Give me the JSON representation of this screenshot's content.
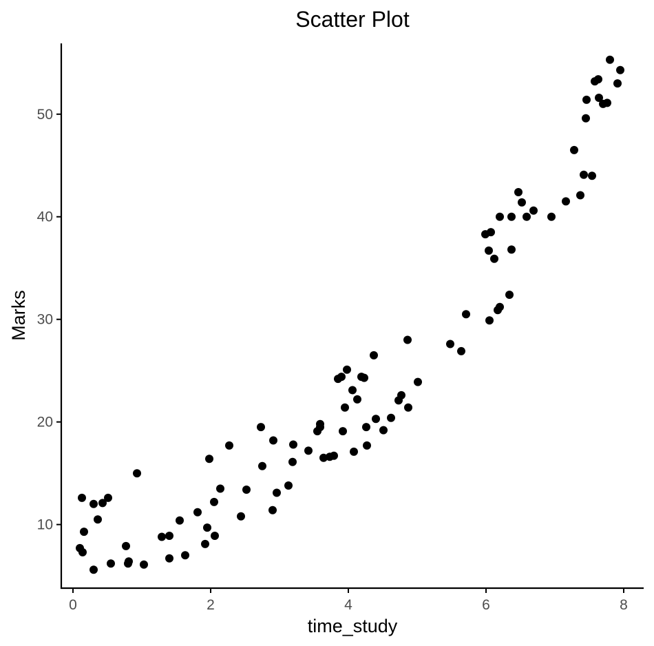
{
  "chart_data": {
    "type": "scatter",
    "title": "Scatter Plot",
    "xlabel": "time_study",
    "ylabel": "Marks",
    "xlim": [
      -0.17,
      8.29
    ],
    "ylim": [
      3.8,
      56.9
    ],
    "x_ticks": [
      0,
      2,
      4,
      6,
      8
    ],
    "y_ticks": [
      10,
      20,
      30,
      40,
      50
    ],
    "grid": false,
    "legend": "none",
    "point_color": "#000000",
    "points": [
      [
        0.1,
        7.7
      ],
      [
        0.14,
        7.3
      ],
      [
        0.13,
        12.6
      ],
      [
        0.16,
        9.3
      ],
      [
        0.3,
        5.6
      ],
      [
        0.3,
        12.0
      ],
      [
        0.36,
        10.5
      ],
      [
        0.43,
        12.1
      ],
      [
        0.51,
        12.6
      ],
      [
        0.55,
        6.2
      ],
      [
        0.77,
        7.9
      ],
      [
        0.8,
        6.2
      ],
      [
        0.81,
        6.4
      ],
      [
        0.93,
        15.0
      ],
      [
        1.03,
        6.1
      ],
      [
        1.29,
        8.8
      ],
      [
        1.4,
        6.7
      ],
      [
        1.4,
        8.9
      ],
      [
        1.55,
        10.4
      ],
      [
        1.63,
        7.0
      ],
      [
        1.81,
        11.2
      ],
      [
        1.92,
        8.1
      ],
      [
        1.95,
        9.7
      ],
      [
        1.98,
        16.4
      ],
      [
        2.05,
        12.2
      ],
      [
        2.06,
        8.9
      ],
      [
        2.14,
        13.5
      ],
      [
        2.27,
        17.7
      ],
      [
        2.44,
        10.8
      ],
      [
        2.52,
        13.4
      ],
      [
        2.73,
        19.5
      ],
      [
        2.75,
        15.7
      ],
      [
        2.9,
        11.4
      ],
      [
        2.91,
        18.2
      ],
      [
        2.96,
        13.1
      ],
      [
        3.13,
        13.8
      ],
      [
        3.19,
        16.1
      ],
      [
        3.2,
        17.8
      ],
      [
        3.42,
        17.2
      ],
      [
        3.55,
        19.1
      ],
      [
        3.59,
        19.8
      ],
      [
        3.59,
        19.5
      ],
      [
        3.64,
        16.5
      ],
      [
        3.73,
        16.6
      ],
      [
        3.79,
        16.7
      ],
      [
        3.85,
        24.2
      ],
      [
        3.9,
        24.4
      ],
      [
        3.92,
        19.1
      ],
      [
        3.95,
        21.4
      ],
      [
        3.98,
        25.1
      ],
      [
        4.06,
        23.1
      ],
      [
        4.08,
        17.1
      ],
      [
        4.13,
        22.2
      ],
      [
        4.19,
        24.4
      ],
      [
        4.23,
        24.3
      ],
      [
        4.26,
        19.5
      ],
      [
        4.27,
        17.7
      ],
      [
        4.37,
        26.5
      ],
      [
        4.4,
        20.3
      ],
      [
        4.51,
        19.2
      ],
      [
        4.62,
        20.4
      ],
      [
        4.73,
        22.1
      ],
      [
        4.77,
        22.6
      ],
      [
        4.86,
        28.0
      ],
      [
        4.87,
        21.4
      ],
      [
        5.01,
        23.9
      ],
      [
        5.48,
        27.6
      ],
      [
        5.64,
        26.9
      ],
      [
        5.71,
        30.5
      ],
      [
        5.99,
        38.3
      ],
      [
        6.04,
        36.7
      ],
      [
        6.05,
        29.9
      ],
      [
        6.07,
        38.5
      ],
      [
        6.12,
        35.9
      ],
      [
        6.17,
        30.9
      ],
      [
        6.2,
        31.2
      ],
      [
        6.2,
        40.0
      ],
      [
        6.34,
        32.4
      ],
      [
        6.37,
        40.0
      ],
      [
        6.37,
        36.8
      ],
      [
        6.47,
        42.4
      ],
      [
        6.52,
        41.4
      ],
      [
        6.59,
        40.0
      ],
      [
        6.69,
        40.6
      ],
      [
        6.95,
        40.0
      ],
      [
        7.16,
        41.5
      ],
      [
        7.28,
        46.5
      ],
      [
        7.37,
        42.1
      ],
      [
        7.42,
        44.1
      ],
      [
        7.45,
        49.6
      ],
      [
        7.46,
        51.4
      ],
      [
        7.54,
        44.0
      ],
      [
        7.58,
        53.2
      ],
      [
        7.63,
        53.4
      ],
      [
        7.64,
        51.6
      ],
      [
        7.7,
        51.0
      ],
      [
        7.76,
        51.1
      ],
      [
        7.8,
        55.3
      ],
      [
        7.91,
        53.0
      ],
      [
        7.95,
        54.3
      ]
    ]
  }
}
